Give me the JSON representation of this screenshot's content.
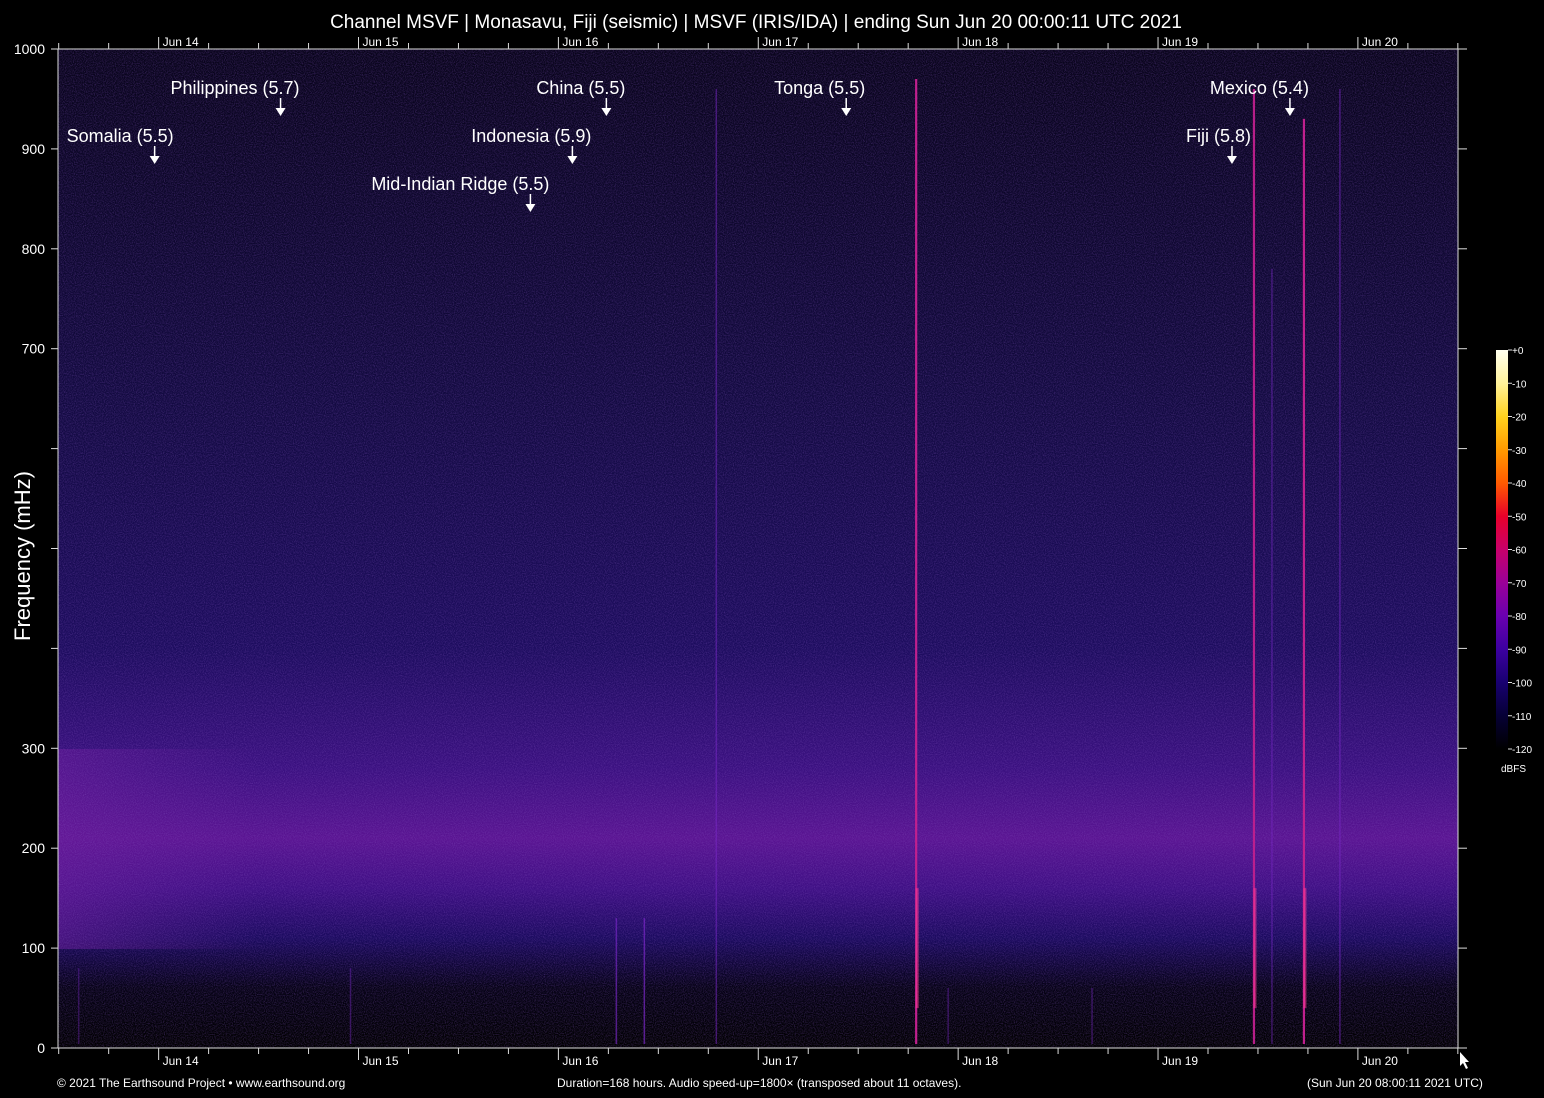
{
  "chart_data": {
    "type": "heatmap",
    "title": "Channel MSVF | Monasavu, Fiji (seismic) | MSVF (IRIS/IDA) | ending Sun Jun 20 00:00:11 UTC 2021",
    "xlabel": "",
    "ylabel": "Frequency (mHz)",
    "ylim": [
      0,
      1000
    ],
    "y_ticks": [
      0,
      100,
      200,
      300,
      400,
      500,
      600,
      700,
      800,
      900,
      1000
    ],
    "y_tick_labels": [
      "0",
      "100",
      "200",
      "300",
      "",
      "",
      "",
      "700",
      "800",
      "900",
      "1000"
    ],
    "x_range_days": [
      13.4965,
      20.5008
    ],
    "x_major_ticks": [
      {
        "day": 14,
        "label": "Jun 14"
      },
      {
        "day": 15,
        "label": "Jun 15"
      },
      {
        "day": 16,
        "label": "Jun 16"
      },
      {
        "day": 17,
        "label": "Jun 17"
      },
      {
        "day": 18,
        "label": "Jun 18"
      },
      {
        "day": 19,
        "label": "Jun 19"
      },
      {
        "day": 20,
        "label": "Jun 20"
      }
    ],
    "x_minor_step_hours": 6,
    "events": [
      {
        "label": "Philippines (5.7)",
        "day": 14.61,
        "level": 1
      },
      {
        "label": "Somalia (5.5)",
        "day": 13.98,
        "level": 2
      },
      {
        "label": "China (5.5)",
        "day": 16.24,
        "level": 1
      },
      {
        "label": "Indonesia (5.9)",
        "day": 16.07,
        "level": 2
      },
      {
        "label": "Mid-Indian Ridge (5.5)",
        "day": 15.86,
        "level": 3
      },
      {
        "label": "Tonga (5.5)",
        "day": 17.44,
        "level": 1
      },
      {
        "label": "Mexico (5.4)",
        "day": 19.66,
        "level": 1
      },
      {
        "label": "Fiji (5.8)",
        "day": 19.37,
        "level": 2
      }
    ],
    "signal_spikes": [
      {
        "day": 17.79,
        "strength": 0.95,
        "top_mhz": 970
      },
      {
        "day": 19.48,
        "strength": 0.8,
        "top_mhz": 960
      },
      {
        "day": 19.73,
        "strength": 0.95,
        "top_mhz": 930
      },
      {
        "day": 16.29,
        "strength": 0.5,
        "top_mhz": 130
      },
      {
        "day": 16.43,
        "strength": 0.55,
        "top_mhz": 130
      },
      {
        "day": 16.79,
        "strength": 0.35,
        "top_mhz": 960
      },
      {
        "day": 19.91,
        "strength": 0.35,
        "top_mhz": 960
      },
      {
        "day": 19.57,
        "strength": 0.3,
        "top_mhz": 780
      },
      {
        "day": 17.95,
        "strength": 0.25,
        "top_mhz": 60
      },
      {
        "day": 18.67,
        "strength": 0.25,
        "top_mhz": 60
      },
      {
        "day": 14.96,
        "strength": 0.25,
        "top_mhz": 80
      },
      {
        "day": 13.6,
        "strength": 0.2,
        "top_mhz": 80
      }
    ],
    "colorbar": {
      "label": "dBFS",
      "ticks": [
        "+0",
        "-10",
        "-20",
        "-30",
        "-40",
        "-50",
        "-60",
        "-70",
        "-80",
        "-90",
        "-100",
        "-110",
        "-120"
      ],
      "colors": [
        "#fffff0",
        "#fff29a",
        "#ffd21e",
        "#ff9a00",
        "#ff5a00",
        "#e8002a",
        "#c8006a",
        "#9a0098",
        "#6a00b0",
        "#3c00a0",
        "#180070",
        "#060035",
        "#000000"
      ]
    }
  },
  "footer": {
    "copyright": "© 2021 The Earthsound Project • www.earthsound.org",
    "duration": "Duration=168 hours. Audio speed-up=1800× (transposed about 11 octaves).",
    "local_time": "(Sun Jun 20 08:00:11 2021 UTC)"
  }
}
